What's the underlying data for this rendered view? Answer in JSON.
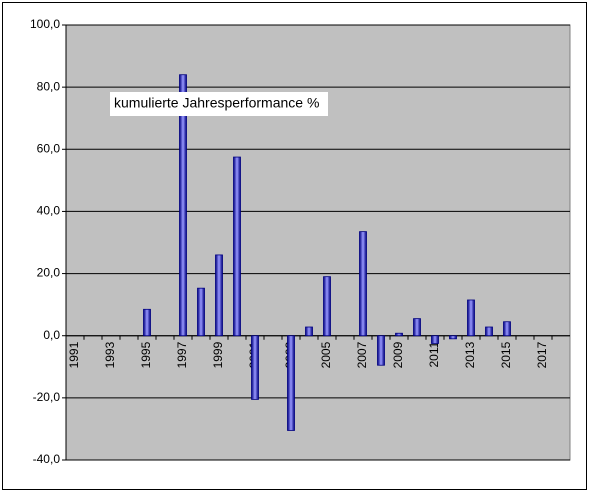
{
  "chart_data": {
    "type": "bar",
    "categories": [
      "1991",
      null,
      "1993",
      null,
      "1995",
      null,
      "1997",
      null,
      "1999",
      null,
      "2001",
      null,
      "2003",
      null,
      "2005",
      null,
      "2007",
      null,
      "2009",
      null,
      "2011",
      null,
      "2013",
      null,
      "2015",
      null,
      "2017",
      null
    ],
    "series": [
      {
        "name": "kumulierte Jahresperformance %",
        "color": "#9999ff",
        "values": [
          null,
          null,
          null,
          null,
          8.5,
          null,
          84,
          15.3,
          26,
          57.5,
          -20.5,
          null,
          -30.5,
          2.8,
          19,
          null,
          33.5,
          -9.5,
          0.8,
          5.5,
          -2.5,
          -1,
          11.5,
          2.8,
          4.5,
          null,
          null,
          null
        ]
      }
    ],
    "ylim": [
      -40,
      100
    ],
    "yticks": [
      {
        "value": -40,
        "label": "-40,0"
      },
      {
        "value": -20,
        "label": "-20,0"
      },
      {
        "value": 0,
        "label": "0,0"
      },
      {
        "value": 20,
        "label": "20,0"
      },
      {
        "value": 40,
        "label": "40,0"
      },
      {
        "value": 60,
        "label": "60,0"
      },
      {
        "value": 80,
        "label": "80,0"
      },
      {
        "value": 100,
        "label": "100,0"
      }
    ],
    "grid": true,
    "plot_background": "#c0c0c0"
  }
}
